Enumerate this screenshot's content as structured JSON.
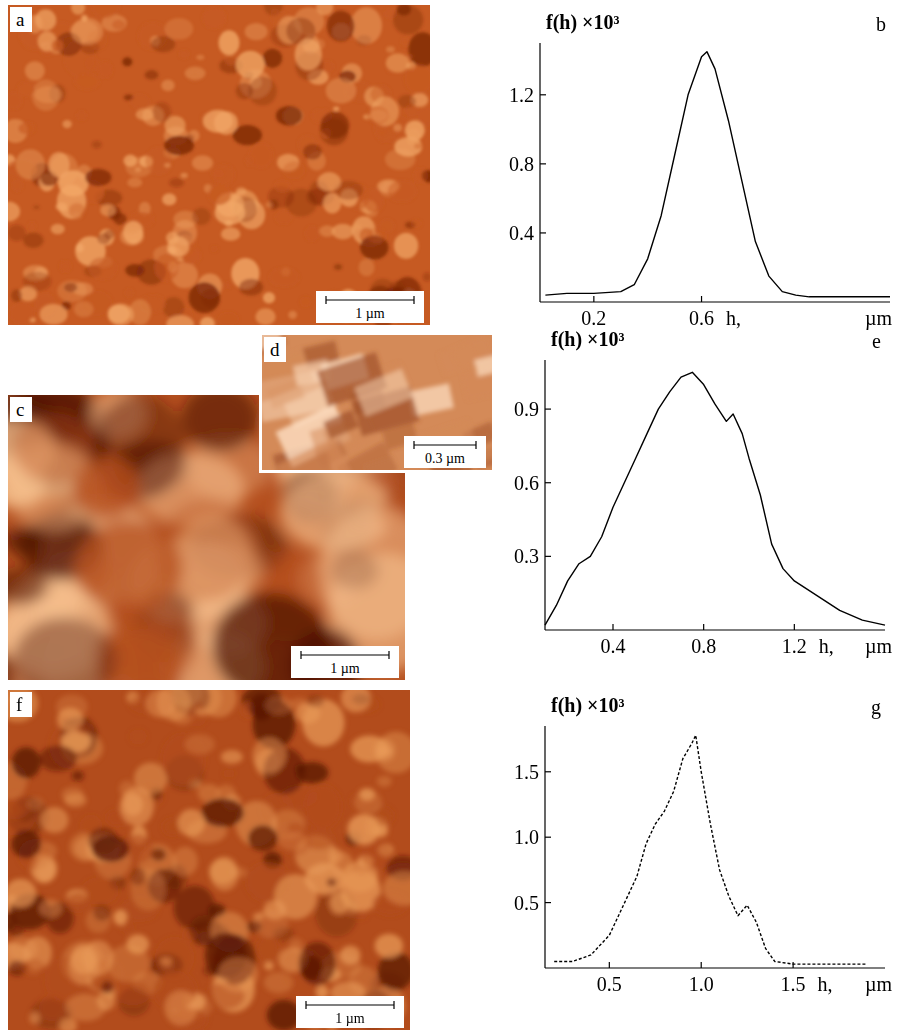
{
  "chart_data": [
    {
      "panel": "b",
      "type": "line",
      "y_label": "f(h) ×10³",
      "x_label": "h,",
      "x_unit": "µm",
      "x": [
        0.02,
        0.1,
        0.2,
        0.3,
        0.35,
        0.4,
        0.45,
        0.5,
        0.55,
        0.6,
        0.62,
        0.65,
        0.7,
        0.75,
        0.8,
        0.85,
        0.9,
        0.95,
        1.0,
        1.1,
        1.2,
        1.3
      ],
      "values": [
        0.04,
        0.05,
        0.05,
        0.06,
        0.1,
        0.25,
        0.5,
        0.85,
        1.2,
        1.42,
        1.45,
        1.35,
        1.05,
        0.7,
        0.35,
        0.15,
        0.06,
        0.04,
        0.03,
        0.03,
        0.03,
        0.03
      ],
      "color": "#000000",
      "line_style": "solid",
      "xlim": [
        0,
        1.3
      ],
      "ylim": [
        0,
        1.5
      ],
      "xticks": [
        0.2,
        0.6
      ],
      "yticks": [
        0.4,
        0.8,
        1.2
      ]
    },
    {
      "panel": "e",
      "type": "line",
      "y_label": "f(h) ×10³",
      "x_label": "h,",
      "x_unit": "µm",
      "x": [
        0.1,
        0.15,
        0.2,
        0.25,
        0.3,
        0.35,
        0.4,
        0.45,
        0.5,
        0.55,
        0.6,
        0.65,
        0.7,
        0.75,
        0.8,
        0.85,
        0.9,
        0.93,
        0.97,
        1.0,
        1.05,
        1.1,
        1.15,
        1.2,
        1.3,
        1.4,
        1.5,
        1.6
      ],
      "values": [
        0.02,
        0.1,
        0.2,
        0.27,
        0.3,
        0.38,
        0.5,
        0.6,
        0.7,
        0.8,
        0.9,
        0.97,
        1.03,
        1.05,
        1.0,
        0.92,
        0.85,
        0.88,
        0.8,
        0.7,
        0.55,
        0.35,
        0.25,
        0.2,
        0.14,
        0.08,
        0.04,
        0.02
      ],
      "color": "#000000",
      "line_style": "solid",
      "xlim": [
        0.1,
        1.6
      ],
      "ylim": [
        0,
        1.1
      ],
      "xticks": [
        0.4,
        0.8,
        1.2
      ],
      "yticks": [
        0.3,
        0.6,
        0.9
      ]
    },
    {
      "panel": "g",
      "type": "line",
      "y_label": "f(h) ×10³",
      "x_label": "h,",
      "x_unit": "µm",
      "x": [
        0.2,
        0.3,
        0.4,
        0.5,
        0.55,
        0.6,
        0.65,
        0.7,
        0.75,
        0.8,
        0.85,
        0.9,
        0.95,
        0.97,
        1.0,
        1.05,
        1.1,
        1.15,
        1.2,
        1.25,
        1.3,
        1.35,
        1.4,
        1.5,
        1.7,
        1.9
      ],
      "values": [
        0.05,
        0.05,
        0.1,
        0.25,
        0.4,
        0.55,
        0.7,
        0.95,
        1.1,
        1.2,
        1.35,
        1.6,
        1.72,
        1.78,
        1.5,
        1.1,
        0.75,
        0.55,
        0.4,
        0.48,
        0.35,
        0.15,
        0.05,
        0.03,
        0.03,
        0.03
      ],
      "color": "#000000",
      "line_style": "dashed",
      "xlim": [
        0.15,
        2.0
      ],
      "ylim": [
        0,
        1.85
      ],
      "xticks": [
        0.5,
        {
          "value": 1,
          "label": "1.0"
        },
        1.5
      ],
      "yticks": [
        0.5,
        {
          "value": 1,
          "label": "1.0"
        },
        1.5
      ]
    }
  ],
  "images": [
    {
      "panel": "a",
      "scale_bar": "1 µm"
    },
    {
      "panel": "c",
      "scale_bar": "1 µm"
    },
    {
      "panel": "d",
      "scale_bar": "0.3 µm"
    },
    {
      "panel": "f",
      "scale_bar": "1 µm"
    }
  ]
}
